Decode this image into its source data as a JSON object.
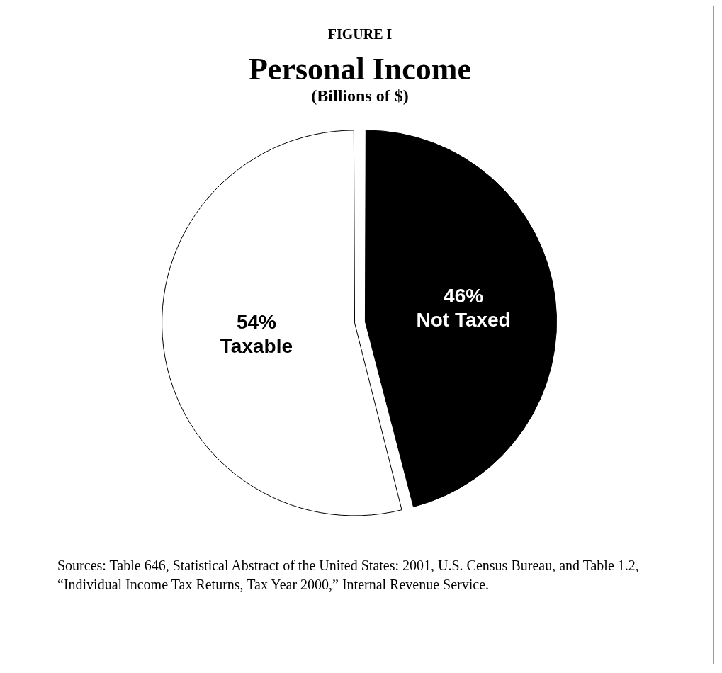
{
  "chart_data": {
    "type": "pie",
    "title": "Personal Income",
    "subtitle": "(Billions of $)",
    "categories": [
      "Taxable",
      "Not Taxed"
    ],
    "values": [
      54,
      46
    ],
    "colors": [
      "#ffffff",
      "#000000"
    ],
    "value_labels": [
      "54%",
      "46%"
    ],
    "legend": false,
    "annotations": [
      "FIGURE I",
      "Sources: Table 646, Statistical Abstract of the United States: 2001, U.S. Census Bureau, and Table 1.2, “Individual Income Tax Returns, Tax Year 2000,” Internal Revenue Service."
    ]
  }
}
